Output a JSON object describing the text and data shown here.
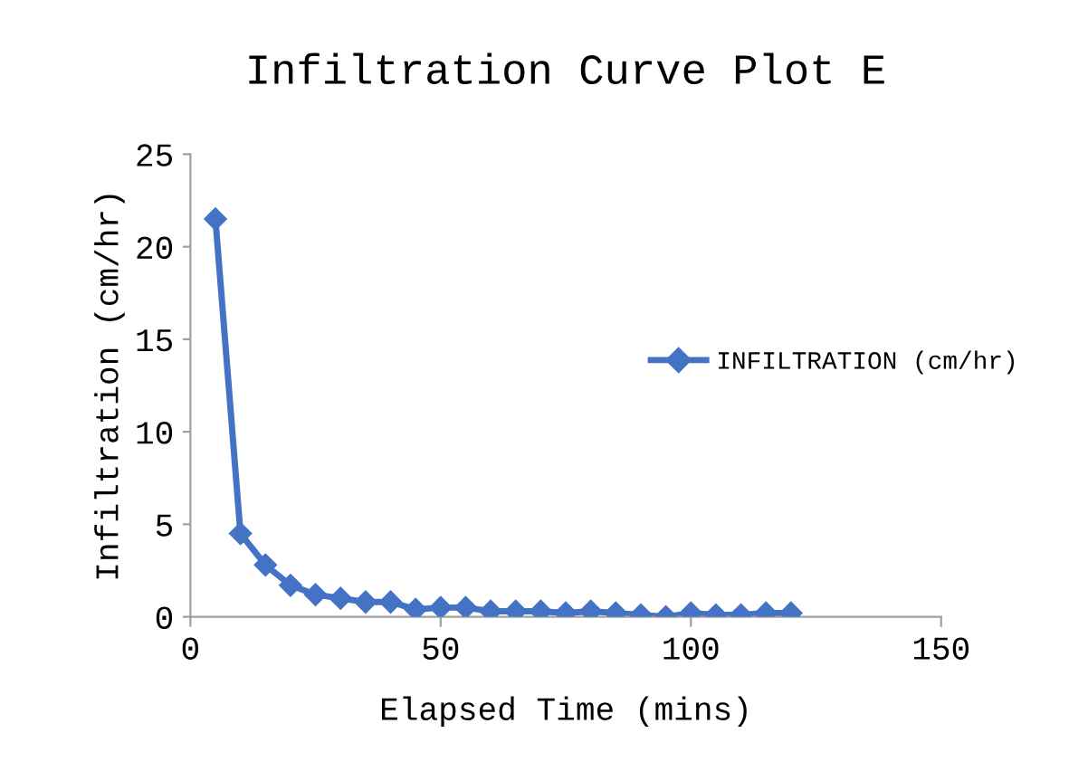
{
  "chart_data": {
    "type": "line",
    "title": "Infiltration Curve Plot E",
    "xlabel": "Elapsed Time (mins)",
    "ylabel": "Infiltration (cm/hr)",
    "x": [
      5,
      10,
      15,
      20,
      25,
      30,
      35,
      40,
      45,
      50,
      55,
      60,
      65,
      70,
      75,
      80,
      85,
      90,
      95,
      100,
      105,
      110,
      115,
      120
    ],
    "series": [
      {
        "name": "INFILTRATION (cm/hr)",
        "color": "#4472c4",
        "values": [
          21.5,
          4.5,
          2.8,
          1.7,
          1.2,
          1.0,
          0.8,
          0.8,
          0.4,
          0.5,
          0.5,
          0.3,
          0.3,
          0.3,
          0.2,
          0.3,
          0.2,
          0.1,
          0.0,
          0.2,
          0.1,
          0.1,
          0.2,
          0.2
        ]
      }
    ],
    "xlim": [
      0,
      150
    ],
    "xticks": [
      0,
      50,
      100,
      150
    ],
    "ylim": [
      0,
      25
    ],
    "yticks": [
      0,
      5,
      10,
      15,
      20,
      25
    ],
    "marker": "diamond",
    "line_style": "solid",
    "grid": false,
    "legend": "right"
  }
}
